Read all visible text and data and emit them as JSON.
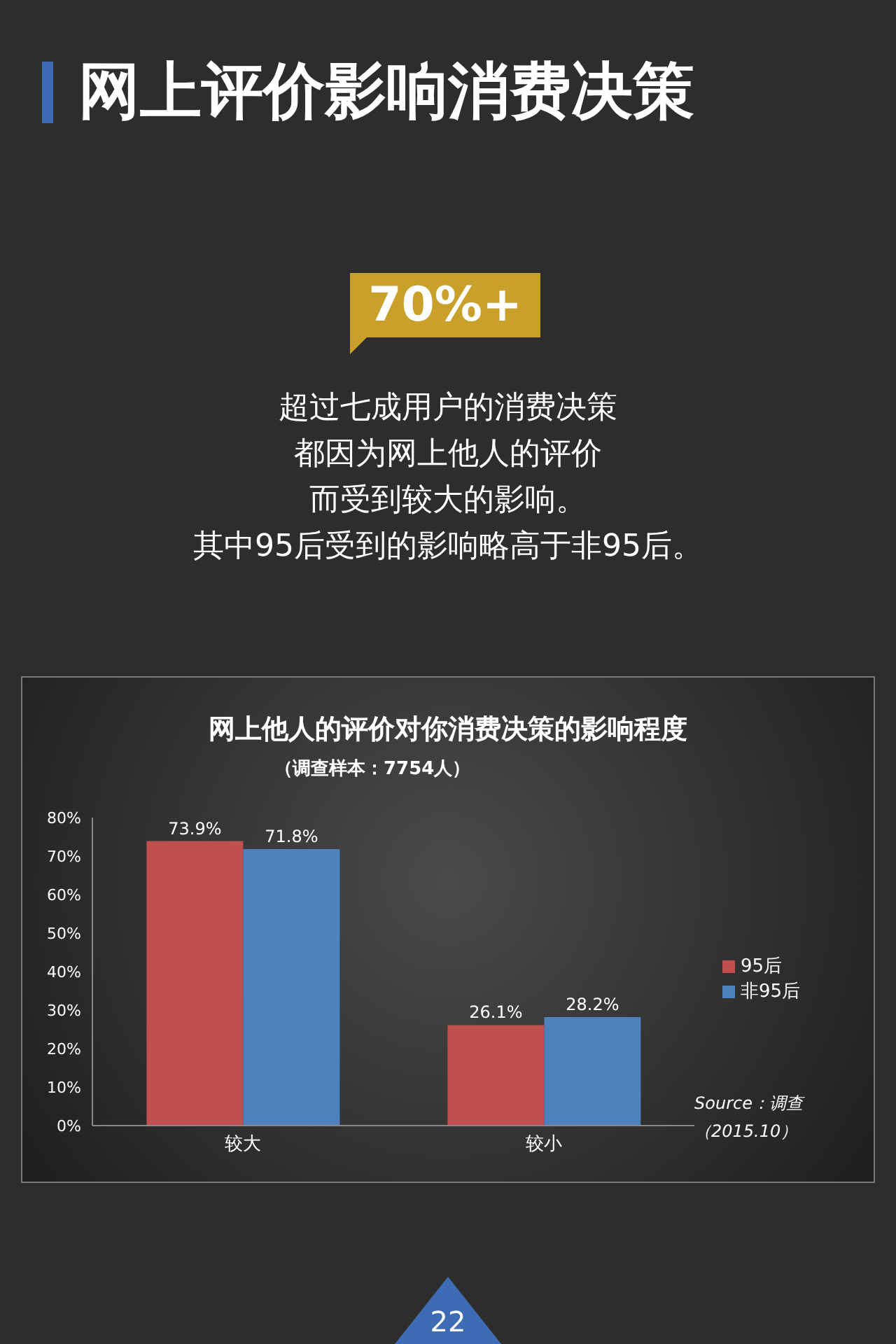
{
  "chart_data": {
    "type": "bar",
    "title": "网上他人的评价对你消费决策的影响程度",
    "subtitle": "（调查样本：7754人）",
    "categories": [
      "较大",
      "较小"
    ],
    "series": [
      {
        "name": "95后",
        "color": "#c0504d",
        "values": [
          73.9,
          26.1
        ],
        "value_labels": [
          "73.9%",
          "26.1%"
        ]
      },
      {
        "name": "非95后",
        "color": "#4f81bd",
        "values": [
          71.8,
          28.2
        ],
        "value_labels": [
          "71.8%",
          "28.2%"
        ]
      }
    ],
    "ylim": [
      0,
      80
    ],
    "yticks": [
      {
        "value": 0,
        "label": "0%"
      },
      {
        "value": 10,
        "label": "10%"
      },
      {
        "value": 20,
        "label": "20%"
      },
      {
        "value": 30,
        "label": "30%"
      },
      {
        "value": 40,
        "label": "40%"
      },
      {
        "value": 50,
        "label": "50%"
      },
      {
        "value": 60,
        "label": "60%"
      },
      {
        "value": 70,
        "label": "70%"
      },
      {
        "value": 80,
        "label": "80%"
      }
    ],
    "grid": false,
    "legend": "right",
    "annotations": [
      "网上评价影响消费决策",
      "70%+",
      "超过七成用户的消费决策",
      "都因为网上他人的评价",
      "而受到较大的影响。",
      "其中95后受到的影响略高于非95后。",
      "Source：调查",
      "（2015.10）",
      "22"
    ]
  }
}
